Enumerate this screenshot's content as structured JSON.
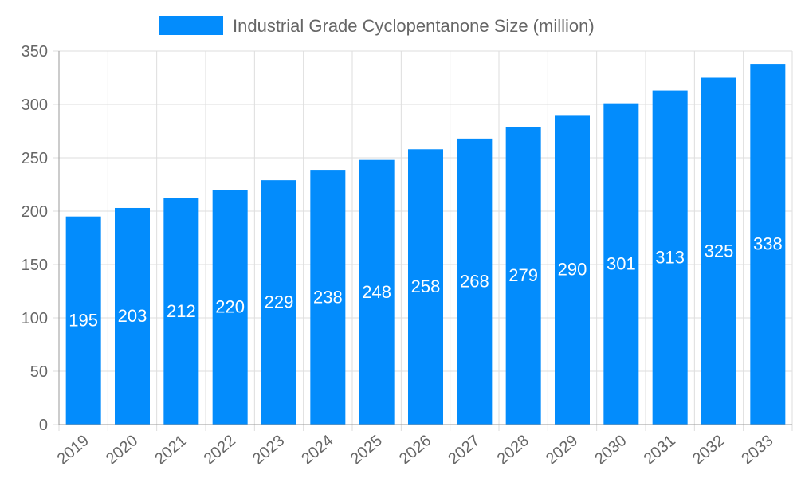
{
  "chart_data": {
    "type": "bar",
    "title": "",
    "xlabel": "",
    "ylabel": "",
    "categories": [
      "2019",
      "2020",
      "2021",
      "2022",
      "2023",
      "2024",
      "2025",
      "2026",
      "2027",
      "2028",
      "2029",
      "2030",
      "2031",
      "2032",
      "2033"
    ],
    "series": [
      {
        "name": "Industrial Grade Cyclopentanone Size (million)",
        "values": [
          195,
          203,
          212,
          220,
          229,
          238,
          248,
          258,
          268,
          279,
          290,
          301,
          313,
          325,
          338
        ]
      }
    ],
    "ylim": [
      0,
      350
    ],
    "yticks": [
      0,
      50,
      100,
      150,
      200,
      250,
      300,
      350
    ],
    "grid": true,
    "legend_position": "top",
    "data_labels": true,
    "colors": {
      "bar": "#038cfc",
      "label": "#ffffff",
      "grid": "#dddddd",
      "text": "#666666"
    }
  }
}
